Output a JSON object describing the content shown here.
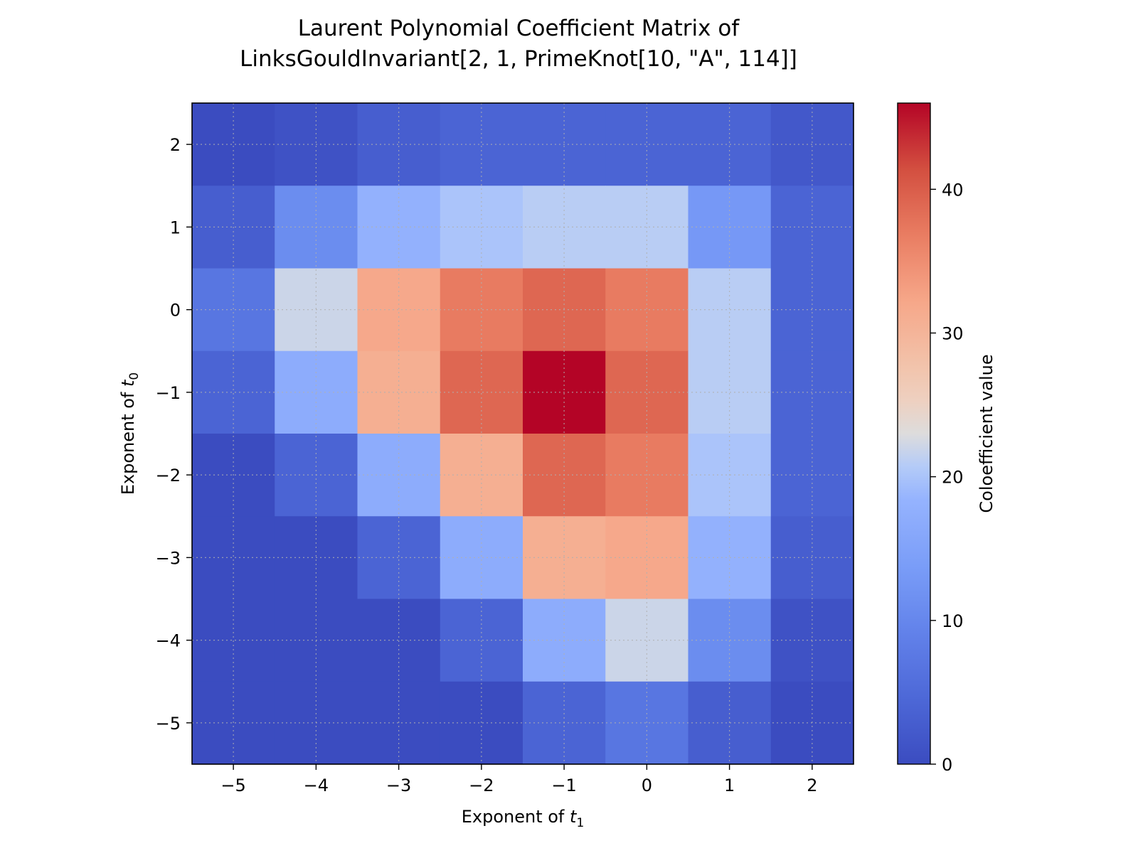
{
  "chart_data": {
    "type": "heatmap",
    "title_line1": "Laurent Polynomial Coefficient Matrix of",
    "title_line2": "LinksGouldInvariant[2, 1, PrimeKnot[10, \"A\", 114]]",
    "xlabel_prefix": "Exponent of ",
    "xlabel_var": "t",
    "xlabel_sub": "1",
    "ylabel_prefix": "Exponent of ",
    "ylabel_var": "t",
    "ylabel_sub": "0",
    "colorbar_label": "Coloefficient value",
    "colormap": "coolwarm",
    "vmin": 0,
    "vmax": 46,
    "x": [
      -5,
      -4,
      -3,
      -2,
      -1,
      0,
      1,
      2
    ],
    "y": [
      2,
      1,
      0,
      -1,
      -2,
      -3,
      -4,
      -5
    ],
    "x_tick_labels": [
      "−5",
      "−4",
      "−3",
      "−2",
      "−1",
      "0",
      "1",
      "2"
    ],
    "y_tick_labels": [
      "2",
      "1",
      "0",
      "−1",
      "−2",
      "−3",
      "−4",
      "−5"
    ],
    "colorbar_ticks": [
      0,
      10,
      20,
      30,
      40
    ],
    "z": [
      [
        0,
        1,
        3,
        4,
        4,
        4,
        4,
        2
      ],
      [
        3,
        11,
        18,
        20,
        21,
        21,
        13,
        4
      ],
      [
        7,
        22,
        32,
        37,
        39,
        37,
        21,
        4
      ],
      [
        4,
        17,
        31,
        39,
        46,
        39,
        21,
        4
      ],
      [
        0,
        4,
        17,
        31,
        39,
        37,
        20,
        4
      ],
      [
        0,
        0,
        4,
        17,
        31,
        32,
        18,
        3
      ],
      [
        0,
        0,
        0,
        4,
        17,
        22,
        11,
        1
      ],
      [
        0,
        0,
        0,
        0,
        4,
        7,
        3,
        0
      ]
    ],
    "grid": true
  }
}
